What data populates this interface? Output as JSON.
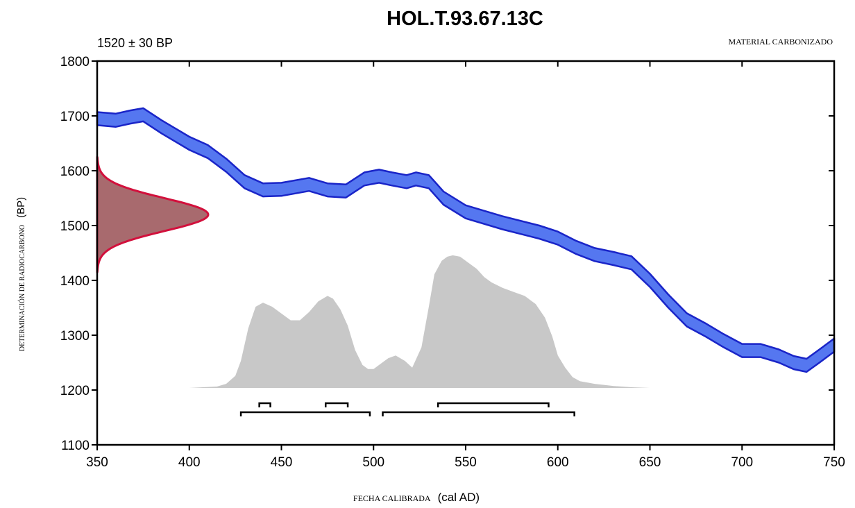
{
  "chart_data": {
    "type": "area",
    "title": "HOL.T.93.67.13C",
    "measurement": "1520 ± 30 BP",
    "material": "MATERIAL CARBONIZADO",
    "xlabel_prefix": "FECHA CALIBRADA",
    "xlabel_unit": "(cal AD)",
    "ylabel_prefix": "DETERMINACIÓN DE RADIOCARBONO",
    "ylabel_unit": "(BP)",
    "xlim": [
      350,
      750
    ],
    "ylim": [
      1100,
      1800
    ],
    "x_ticks": [
      350,
      400,
      450,
      500,
      550,
      600,
      650,
      700,
      750
    ],
    "y_ticks": [
      1100,
      1200,
      1300,
      1400,
      1500,
      1600,
      1700,
      1800
    ],
    "colors": {
      "calibration_fill": "#5577f0",
      "calibration_edge": "#1a25c8",
      "measurement_fill": "#a86a6e",
      "measurement_edge": "#d2103c",
      "probability_fill": "#c8c8c8",
      "axes": "#000000"
    },
    "series": [
      {
        "kind": "calibration-curve",
        "x": [
          350,
          360,
          368,
          375,
          385,
          400,
          410,
          420,
          430,
          440,
          450,
          465,
          475,
          485,
          495,
          503,
          510,
          518,
          523,
          530,
          538,
          550,
          570,
          590,
          600,
          610,
          620,
          630,
          640,
          650,
          660,
          670,
          680,
          690,
          700,
          710,
          720,
          728,
          735,
          742,
          750
        ],
        "y": [
          1695,
          1692,
          1698,
          1702,
          1680,
          1650,
          1635,
          1610,
          1580,
          1565,
          1566,
          1575,
          1565,
          1563,
          1585,
          1590,
          1585,
          1580,
          1585,
          1580,
          1550,
          1525,
          1505,
          1488,
          1477,
          1460,
          1447,
          1440,
          1432,
          1400,
          1362,
          1328,
          1310,
          1290,
          1272,
          1272,
          1262,
          1250,
          1245,
          1262,
          1282
        ],
        "halfwidth": 12
      },
      {
        "kind": "measurement-distribution",
        "mean": 1520,
        "sigma": 30
      },
      {
        "kind": "calibrated-probability",
        "x": [
          400,
          415,
          420,
          425,
          428,
          432,
          436,
          440,
          445,
          450,
          455,
          460,
          465,
          470,
          475,
          478,
          482,
          486,
          490,
          494,
          497,
          500,
          504,
          508,
          512,
          517,
          521,
          526,
          530,
          533,
          537,
          540,
          543,
          547,
          550,
          556,
          560,
          564,
          570,
          576,
          582,
          588,
          593,
          597,
          600,
          604,
          608,
          612,
          620,
          630,
          640,
          650
        ],
        "y": [
          0,
          0.01,
          0.03,
          0.09,
          0.2,
          0.44,
          0.6,
          0.63,
          0.6,
          0.55,
          0.5,
          0.5,
          0.56,
          0.64,
          0.68,
          0.66,
          0.58,
          0.46,
          0.28,
          0.17,
          0.14,
          0.14,
          0.18,
          0.22,
          0.24,
          0.2,
          0.15,
          0.3,
          0.6,
          0.84,
          0.94,
          0.97,
          0.98,
          0.97,
          0.94,
          0.88,
          0.82,
          0.78,
          0.74,
          0.71,
          0.68,
          0.62,
          0.52,
          0.38,
          0.24,
          0.15,
          0.08,
          0.05,
          0.03,
          0.015,
          0.005,
          0
        ]
      }
    ],
    "ranges_1sigma": [
      [
        438,
        444
      ],
      [
        474,
        486
      ],
      [
        535,
        595
      ]
    ],
    "ranges_2sigma": [
      [
        428,
        498
      ],
      [
        505,
        609
      ]
    ]
  }
}
